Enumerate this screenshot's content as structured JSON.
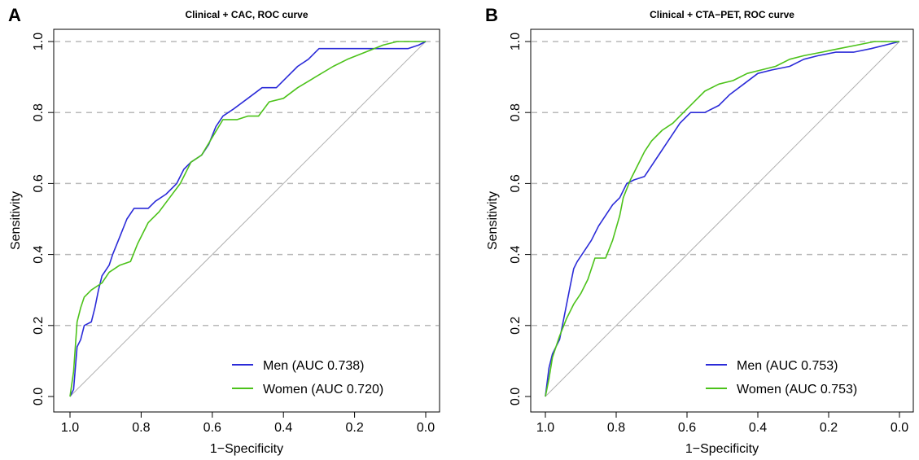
{
  "chart_data": [
    {
      "type": "line",
      "panel": "A",
      "title": "Clinical + CAC, ROC curve",
      "xlabel": "1−Specificity",
      "ylabel": "Sensitivity",
      "xlim": [
        1.0,
        0.0
      ],
      "ylim": [
        0.0,
        1.0
      ],
      "x_ticks": [
        "1.0",
        "0.8",
        "0.6",
        "0.4",
        "0.2",
        "0.0"
      ],
      "y_ticks": [
        "0.0",
        "0.2",
        "0.4",
        "0.6",
        "0.8",
        "1.0"
      ],
      "grid": "horizontal dashed",
      "legend_position": "bottom-right",
      "series": [
        {
          "name": "Men (AUC 0.738)",
          "color": "#2b2bd8",
          "points": [
            [
              1.0,
              0.0
            ],
            [
              0.99,
              0.02
            ],
            [
              0.98,
              0.14
            ],
            [
              0.97,
              0.16
            ],
            [
              0.96,
              0.2
            ],
            [
              0.94,
              0.21
            ],
            [
              0.93,
              0.25
            ],
            [
              0.92,
              0.3
            ],
            [
              0.91,
              0.34
            ],
            [
              0.89,
              0.37
            ],
            [
              0.88,
              0.4
            ],
            [
              0.86,
              0.45
            ],
            [
              0.84,
              0.5
            ],
            [
              0.82,
              0.53
            ],
            [
              0.78,
              0.53
            ],
            [
              0.76,
              0.55
            ],
            [
              0.73,
              0.57
            ],
            [
              0.7,
              0.6
            ],
            [
              0.68,
              0.64
            ],
            [
              0.66,
              0.66
            ],
            [
              0.63,
              0.68
            ],
            [
              0.61,
              0.71
            ],
            [
              0.59,
              0.76
            ],
            [
              0.57,
              0.79
            ],
            [
              0.54,
              0.81
            ],
            [
              0.5,
              0.84
            ],
            [
              0.46,
              0.87
            ],
            [
              0.42,
              0.87
            ],
            [
              0.39,
              0.9
            ],
            [
              0.36,
              0.93
            ],
            [
              0.33,
              0.95
            ],
            [
              0.3,
              0.98
            ],
            [
              0.25,
              0.98
            ],
            [
              0.2,
              0.98
            ],
            [
              0.15,
              0.98
            ],
            [
              0.1,
              0.98
            ],
            [
              0.05,
              0.98
            ],
            [
              0.02,
              0.99
            ],
            [
              0.0,
              1.0
            ]
          ]
        },
        {
          "name": "Women (AUC 0.720)",
          "color": "#4cc21a",
          "points": [
            [
              1.0,
              0.0
            ],
            [
              0.99,
              0.07
            ],
            [
              0.98,
              0.21
            ],
            [
              0.97,
              0.25
            ],
            [
              0.96,
              0.28
            ],
            [
              0.94,
              0.3
            ],
            [
              0.91,
              0.32
            ],
            [
              0.89,
              0.35
            ],
            [
              0.86,
              0.37
            ],
            [
              0.83,
              0.38
            ],
            [
              0.81,
              0.43
            ],
            [
              0.78,
              0.49
            ],
            [
              0.75,
              0.52
            ],
            [
              0.72,
              0.56
            ],
            [
              0.69,
              0.6
            ],
            [
              0.66,
              0.66
            ],
            [
              0.63,
              0.68
            ],
            [
              0.6,
              0.73
            ],
            [
              0.57,
              0.78
            ],
            [
              0.53,
              0.78
            ],
            [
              0.5,
              0.79
            ],
            [
              0.47,
              0.79
            ],
            [
              0.44,
              0.83
            ],
            [
              0.4,
              0.84
            ],
            [
              0.36,
              0.87
            ],
            [
              0.31,
              0.9
            ],
            [
              0.26,
              0.93
            ],
            [
              0.22,
              0.95
            ],
            [
              0.17,
              0.97
            ],
            [
              0.12,
              0.99
            ],
            [
              0.08,
              1.0
            ],
            [
              0.04,
              1.0
            ],
            [
              0.0,
              1.0
            ]
          ]
        }
      ]
    },
    {
      "type": "line",
      "panel": "B",
      "title": "Clinical + CTA−PET, ROC curve",
      "xlabel": "1−Specificity",
      "ylabel": "Sensitivity",
      "xlim": [
        1.0,
        0.0
      ],
      "ylim": [
        0.0,
        1.0
      ],
      "x_ticks": [
        "1.0",
        "0.8",
        "0.6",
        "0.4",
        "0.2",
        "0.0"
      ],
      "y_ticks": [
        "0.0",
        "0.2",
        "0.4",
        "0.6",
        "0.8",
        "1.0"
      ],
      "grid": "horizontal dashed",
      "legend_position": "bottom-right",
      "series": [
        {
          "name": "Men (AUC 0.753)",
          "color": "#2b2bd8",
          "points": [
            [
              1.0,
              0.0
            ],
            [
              0.99,
              0.08
            ],
            [
              0.98,
              0.12
            ],
            [
              0.96,
              0.16
            ],
            [
              0.95,
              0.21
            ],
            [
              0.94,
              0.26
            ],
            [
              0.93,
              0.31
            ],
            [
              0.92,
              0.36
            ],
            [
              0.91,
              0.38
            ],
            [
              0.89,
              0.41
            ],
            [
              0.87,
              0.44
            ],
            [
              0.85,
              0.48
            ],
            [
              0.83,
              0.51
            ],
            [
              0.81,
              0.54
            ],
            [
              0.79,
              0.56
            ],
            [
              0.77,
              0.6
            ],
            [
              0.75,
              0.61
            ],
            [
              0.72,
              0.62
            ],
            [
              0.7,
              0.65
            ],
            [
              0.68,
              0.68
            ],
            [
              0.66,
              0.71
            ],
            [
              0.64,
              0.74
            ],
            [
              0.62,
              0.77
            ],
            [
              0.59,
              0.8
            ],
            [
              0.55,
              0.8
            ],
            [
              0.51,
              0.82
            ],
            [
              0.48,
              0.85
            ],
            [
              0.44,
              0.88
            ],
            [
              0.4,
              0.91
            ],
            [
              0.36,
              0.92
            ],
            [
              0.31,
              0.93
            ],
            [
              0.27,
              0.95
            ],
            [
              0.23,
              0.96
            ],
            [
              0.18,
              0.97
            ],
            [
              0.13,
              0.97
            ],
            [
              0.08,
              0.98
            ],
            [
              0.04,
              0.99
            ],
            [
              0.0,
              1.0
            ]
          ]
        },
        {
          "name": "Women (AUC 0.753)",
          "color": "#4cc21a",
          "points": [
            [
              1.0,
              0.0
            ],
            [
              0.99,
              0.05
            ],
            [
              0.98,
              0.11
            ],
            [
              0.96,
              0.17
            ],
            [
              0.94,
              0.22
            ],
            [
              0.92,
              0.26
            ],
            [
              0.9,
              0.29
            ],
            [
              0.88,
              0.33
            ],
            [
              0.86,
              0.39
            ],
            [
              0.83,
              0.39
            ],
            [
              0.81,
              0.44
            ],
            [
              0.79,
              0.51
            ],
            [
              0.78,
              0.56
            ],
            [
              0.76,
              0.61
            ],
            [
              0.74,
              0.65
            ],
            [
              0.72,
              0.69
            ],
            [
              0.7,
              0.72
            ],
            [
              0.67,
              0.75
            ],
            [
              0.64,
              0.77
            ],
            [
              0.61,
              0.8
            ],
            [
              0.58,
              0.83
            ],
            [
              0.55,
              0.86
            ],
            [
              0.51,
              0.88
            ],
            [
              0.47,
              0.89
            ],
            [
              0.43,
              0.91
            ],
            [
              0.39,
              0.92
            ],
            [
              0.35,
              0.93
            ],
            [
              0.31,
              0.95
            ],
            [
              0.27,
              0.96
            ],
            [
              0.22,
              0.97
            ],
            [
              0.17,
              0.98
            ],
            [
              0.12,
              0.99
            ],
            [
              0.07,
              1.0
            ],
            [
              0.03,
              1.0
            ],
            [
              0.0,
              1.0
            ]
          ]
        }
      ]
    }
  ]
}
